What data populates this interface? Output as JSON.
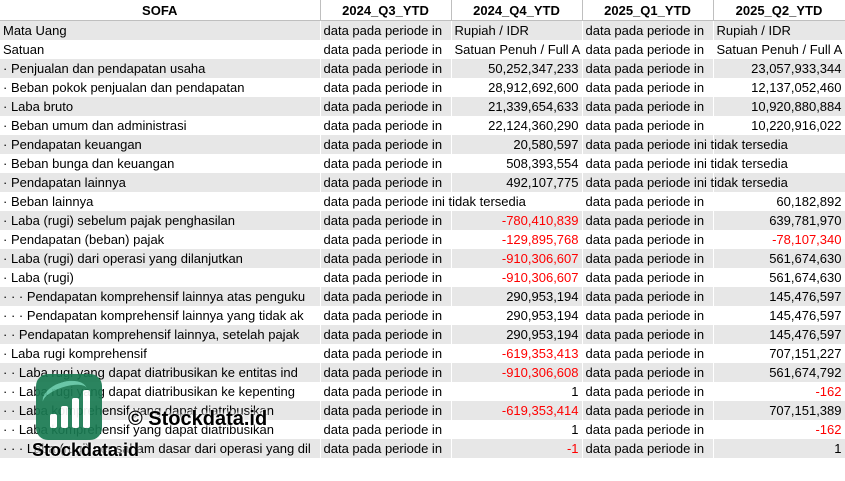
{
  "headers": [
    "SOFA",
    "2024_Q3_YTD",
    "2024_Q4_YTD",
    "2025_Q1_YTD",
    "2025_Q2_YTD"
  ],
  "rows": [
    {
      "label": "Mata Uang",
      "c1": "data pada periode in",
      "c2": "Rupiah / IDR",
      "c3": "data pada periode in",
      "c4": "Rupiah / IDR"
    },
    {
      "label": "Satuan",
      "c1": "data pada periode in",
      "c2": "Satuan Penuh / Full A",
      "c3": "data pada periode in",
      "c4": "Satuan Penuh / Full A"
    },
    {
      "label": "· Penjualan dan pendapatan usaha",
      "c1": "data pada periode in",
      "c2": "50,252,347,233",
      "c3": "data pada periode in",
      "c4": "23,057,933,344"
    },
    {
      "label": "· Beban pokok penjualan dan pendapatan",
      "c1": "data pada periode in",
      "c2": "28,912,692,600",
      "c3": "data pada periode in",
      "c4": "12,137,052,460"
    },
    {
      "label": "· Laba bruto",
      "c1": "data pada periode in",
      "c2": "21,339,654,633",
      "c3": "data pada periode in",
      "c4": "10,920,880,884"
    },
    {
      "label": "· Beban umum dan administrasi",
      "c1": "data pada periode in",
      "c2": "22,124,360,290",
      "c3": "data pada periode in",
      "c4": "10,220,916,022"
    },
    {
      "label": "· Pendapatan keuangan",
      "c1": "data pada periode in",
      "c2": "20,580,597",
      "c3": "data pada periode ini tidak tersedia",
      "c4": ""
    },
    {
      "label": "· Beban bunga dan keuangan",
      "c1": "data pada periode in",
      "c2": "508,393,554",
      "c3": "data pada periode ini tidak tersedia",
      "c4": ""
    },
    {
      "label": "· Pendapatan lainnya",
      "c1": "data pada periode in",
      "c2": "492,107,775",
      "c3": "data pada periode ini tidak tersedia",
      "c4": ""
    },
    {
      "label": "· Beban lainnya",
      "c1": "data pada periode ini tidak tersedia",
      "c2": "",
      "c3": "data pada periode in",
      "c4": "60,182,892"
    },
    {
      "label": "· Laba (rugi) sebelum pajak penghasilan",
      "c1": "data pada periode in",
      "c2": "-780,410,839",
      "c3": "data pada periode in",
      "c4": "639,781,970"
    },
    {
      "label": "· Pendapatan (beban) pajak",
      "c1": "data pada periode in",
      "c2": "-129,895,768",
      "c3": "data pada periode in",
      "c4": "-78,107,340"
    },
    {
      "label": "· Laba (rugi) dari operasi yang dilanjutkan",
      "c1": "data pada periode in",
      "c2": "-910,306,607",
      "c3": "data pada periode in",
      "c4": "561,674,630"
    },
    {
      "label": "· Laba (rugi)",
      "c1": "data pada periode in",
      "c2": "-910,306,607",
      "c3": "data pada periode in",
      "c4": "561,674,630"
    },
    {
      "label": "· · · Pendapatan komprehensif lainnya atas penguku",
      "c1": "data pada periode in",
      "c2": "290,953,194",
      "c3": "data pada periode in",
      "c4": "145,476,597"
    },
    {
      "label": "· · · Pendapatan komprehensif lainnya yang tidak ak",
      "c1": "data pada periode in",
      "c2": "290,953,194",
      "c3": "data pada periode in",
      "c4": "145,476,597"
    },
    {
      "label": "· · Pendapatan komprehensif lainnya, setelah pajak",
      "c1": "data pada periode in",
      "c2": "290,953,194",
      "c3": "data pada periode in",
      "c4": "145,476,597"
    },
    {
      "label": "· Laba rugi komprehensif",
      "c1": "data pada periode in",
      "c2": "-619,353,413",
      "c3": "data pada periode in",
      "c4": "707,151,227"
    },
    {
      "label": "· · Laba rugi yang dapat diatribusikan ke entitas ind",
      "c1": "data pada periode in",
      "c2": "-910,306,608",
      "c3": "data pada periode in",
      "c4": "561,674,792"
    },
    {
      "label": "· · Laba rugi yang dapat diatribusikan ke kepenting",
      "c1": "data pada periode in",
      "c2": "1",
      "c3": "data pada periode in",
      "c4": "-162"
    },
    {
      "label": "· · Laba komprehensif yang dapat diatribusikan",
      "c1": "data pada periode in",
      "c2": "-619,353,414",
      "c3": "data pada periode in",
      "c4": "707,151,389"
    },
    {
      "label": "· · Laba komprehensif yang dapat diatribusikan",
      "c1": "data pada periode in",
      "c2": "1",
      "c3": "data pada periode in",
      "c4": "-162"
    },
    {
      "label": "· · · Laba (rugi) per saham dasar dari operasi yang dil",
      "c1": "data pada periode in",
      "c2": "-1",
      "c3": "data pada periode in",
      "c4": "1"
    }
  ],
  "watermark": {
    "copyright": "© Stockdata.id",
    "brand": "Stockdata.id",
    "logo_icon": "bar-chart-logo-icon",
    "logo_color": "#1a7a52"
  },
  "colors": {
    "negative": "#ff0000",
    "stripe": "#e7e7e7"
  }
}
